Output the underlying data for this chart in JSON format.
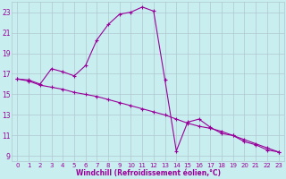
{
  "xlabel": "Windchill (Refroidissement éolien,°C)",
  "bg_color": "#c8eef0",
  "line_color": "#990099",
  "grid_color": "#b0c8d0",
  "xlim": [
    -0.5,
    23.5
  ],
  "ylim": [
    8.5,
    24.0
  ],
  "xticks": [
    0,
    1,
    2,
    3,
    4,
    5,
    6,
    7,
    8,
    9,
    10,
    11,
    12,
    13,
    14,
    15,
    16,
    17,
    18,
    19,
    20,
    21,
    22,
    23
  ],
  "yticks": [
    9,
    11,
    13,
    15,
    17,
    19,
    21,
    23
  ],
  "line1_x": [
    0,
    1,
    2,
    3,
    4,
    5,
    6,
    7,
    8,
    9,
    10,
    11,
    12,
    13,
    14,
    15,
    16,
    17,
    18,
    19,
    20,
    21,
    22,
    23
  ],
  "line1_y": [
    16.5,
    16.4,
    16.0,
    17.5,
    17.2,
    16.8,
    17.8,
    20.3,
    21.8,
    22.8,
    23.0,
    23.5,
    23.1,
    16.4,
    9.5,
    12.3,
    12.6,
    11.8,
    11.2,
    11.0,
    10.4,
    10.1,
    9.6,
    9.4
  ],
  "line2_x": [
    0,
    1,
    2,
    3,
    4,
    5,
    6,
    7,
    8,
    9,
    10,
    11,
    12,
    13,
    14,
    15,
    16,
    17,
    18,
    19,
    20,
    21,
    22,
    23
  ],
  "line2_y": [
    16.5,
    16.3,
    15.9,
    15.7,
    15.5,
    15.2,
    15.0,
    14.8,
    14.5,
    14.2,
    13.9,
    13.6,
    13.3,
    13.0,
    12.6,
    12.2,
    11.9,
    11.7,
    11.4,
    11.0,
    10.6,
    10.2,
    9.8,
    9.4
  ],
  "tick_fontsize": 5.0,
  "xlabel_fontsize": 5.5
}
